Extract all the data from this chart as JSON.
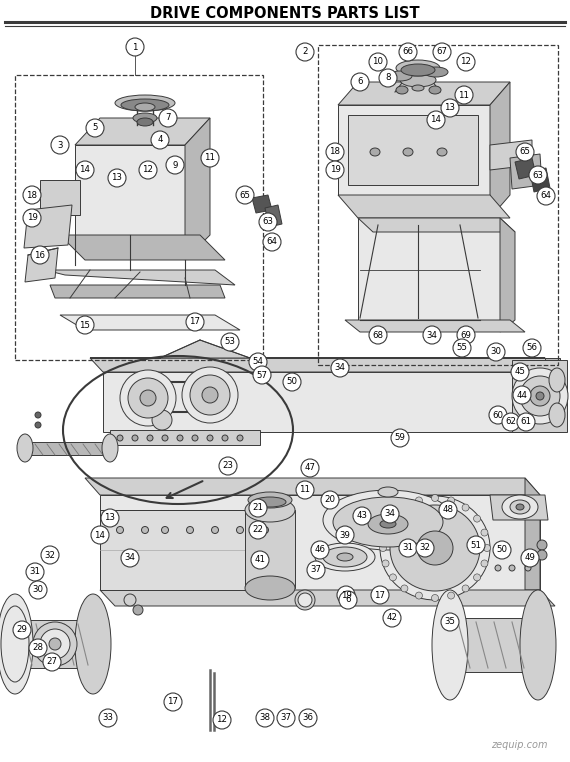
{
  "title": "DRIVE COMPONENTS PARTS LIST",
  "bg_color": "#ffffff",
  "title_fontsize": 10.5,
  "watermark": "zequip.com",
  "fig_width": 5.7,
  "fig_height": 7.62,
  "dpi": 100,
  "lc": "#3a3a3a",
  "fc_light": "#e8e8e8",
  "fc_mid": "#d0d0d0",
  "fc_dark": "#b8b8b8"
}
